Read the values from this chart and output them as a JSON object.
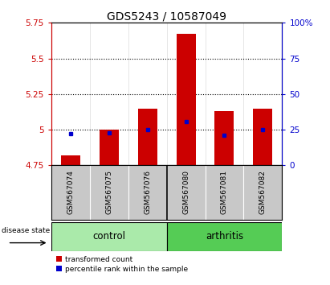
{
  "title": "GDS5243 / 10587049",
  "samples": [
    "GSM567074",
    "GSM567075",
    "GSM567076",
    "GSM567080",
    "GSM567081",
    "GSM567082"
  ],
  "red_values": [
    4.82,
    5.0,
    5.15,
    5.67,
    5.13,
    5.15
  ],
  "blue_values": [
    4.97,
    4.98,
    5.0,
    5.055,
    4.96,
    5.0
  ],
  "ylim": [
    4.75,
    5.75
  ],
  "yticks": [
    4.75,
    5.0,
    5.25,
    5.5,
    5.75
  ],
  "ytick_labels": [
    "4.75",
    "5",
    "5.25",
    "5.5",
    "5.75"
  ],
  "right_yticks": [
    0,
    25,
    50,
    75,
    100
  ],
  "right_ytick_labels": [
    "0",
    "25",
    "50",
    "75",
    "100%"
  ],
  "control_indices": [
    0,
    1,
    2
  ],
  "arthritis_indices": [
    3,
    4,
    5
  ],
  "bar_width": 0.5,
  "red_color": "#CC0000",
  "blue_color": "#0000CC",
  "axis_bg": "#C8C8C8",
  "control_color": "#AAEAAA",
  "arthritis_color": "#55CC55",
  "legend_red": "transformed count",
  "legend_blue": "percentile rank within the sample",
  "title_fontsize": 10,
  "tick_fontsize": 7.5,
  "label_fontsize": 8.5
}
